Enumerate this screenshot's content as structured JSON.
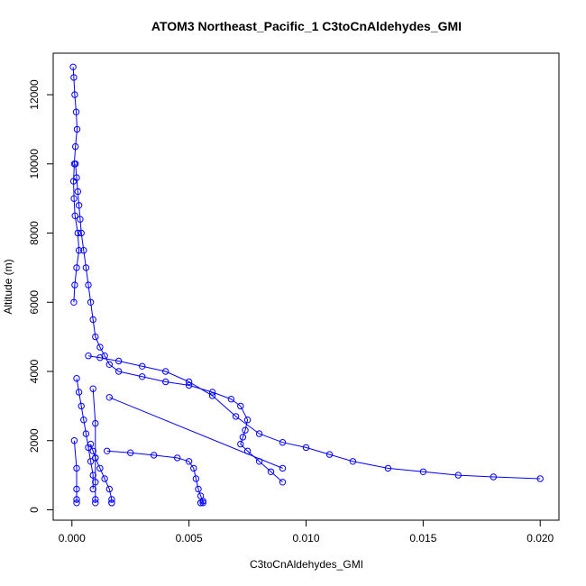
{
  "chart_data": {
    "type": "scatter",
    "title": "ATOM3 Northeast_Pacific_1 C3toCnAldehydes_GMI",
    "xlabel": "C3toCnAldehydes_GMI",
    "ylabel": "Altitude (m)",
    "xlim": [
      -0.0008,
      0.0208
    ],
    "ylim": [
      -300,
      13200
    ],
    "xticks": [
      0.0,
      0.005,
      0.01,
      0.015,
      0.02
    ],
    "xtick_labels": [
      "0.000",
      "0.005",
      "0.010",
      "0.015",
      "0.020"
    ],
    "yticks": [
      0,
      2000,
      4000,
      6000,
      8000,
      10000,
      12000
    ],
    "ytick_labels": [
      "0",
      "2000",
      "4000",
      "6000",
      "8000",
      "10000",
      "12000"
    ],
    "grid": false,
    "series_color": "#0000ff",
    "marker": "open-circle",
    "series": [
      {
        "x": [
          5e-05,
          8e-05,
          0.00012,
          0.00018,
          0.00022,
          0.00015,
          0.0001,
          7e-05,
          9e-05,
          0.00013,
          0.00025,
          0.0003,
          0.0002,
          0.00012,
          8e-05
        ],
        "y": [
          12800,
          12500,
          12000,
          11500,
          11000,
          10500,
          10000,
          9500,
          9000,
          8500,
          8000,
          7500,
          7000,
          6500,
          6000
        ]
      },
      {
        "x": [
          0.00015,
          0.0002,
          0.00025,
          0.0003,
          0.00035,
          0.0004,
          0.0005,
          0.0006,
          0.0007,
          0.0008,
          0.0009,
          0.001,
          0.0012,
          0.0014,
          0.0016,
          0.002,
          0.003,
          0.004,
          0.005,
          0.006,
          0.0068,
          0.0072,
          0.0075,
          0.0074,
          0.0073,
          0.0072,
          0.0075,
          0.008,
          0.0085,
          0.009
        ],
        "y": [
          10000,
          9600,
          9200,
          8800,
          8400,
          8000,
          7500,
          7000,
          6500,
          6000,
          5500,
          5000,
          4700,
          4450,
          4200,
          4000,
          3850,
          3700,
          3600,
          3400,
          3200,
          3000,
          2600,
          2300,
          2100,
          1900,
          1700,
          1400,
          1100,
          800
        ]
      },
      {
        "x": [
          0.0007,
          0.0012,
          0.002,
          0.003,
          0.004,
          0.005,
          0.006,
          0.007,
          0.008,
          0.009,
          0.01,
          0.011,
          0.012,
          0.0135,
          0.015,
          0.0165,
          0.018,
          0.02
        ],
        "y": [
          4450,
          4400,
          4300,
          4150,
          4000,
          3700,
          3300,
          2700,
          2200,
          1950,
          1800,
          1600,
          1400,
          1200,
          1100,
          1000,
          950,
          900
        ]
      },
      {
        "x": [
          0.0016,
          0.009
        ],
        "y": [
          3250,
          1200
        ]
      },
      {
        "x": [
          0.0015,
          0.0025,
          0.0035,
          0.0045,
          0.005,
          0.0052,
          0.0053,
          0.0054,
          0.0055,
          0.0056,
          0.0055,
          0.0055,
          0.0056
        ],
        "y": [
          1700,
          1650,
          1580,
          1500,
          1400,
          1200,
          900,
          600,
          400,
          250,
          200,
          200,
          200
        ]
      },
      {
        "x": [
          0.0008,
          0.0009,
          0.001,
          0.0012,
          0.0014,
          0.0016,
          0.0017,
          0.0017,
          0.0017
        ],
        "y": [
          1900,
          1700,
          1500,
          1200,
          900,
          600,
          300,
          200,
          200
        ]
      },
      {
        "x": [
          0.0009,
          0.001,
          0.001,
          0.001,
          0.001,
          0.001
        ],
        "y": [
          3500,
          2500,
          1500,
          800,
          300,
          200
        ]
      },
      {
        "x": [
          0.0002,
          0.0003,
          0.0004,
          0.0005,
          0.0006,
          0.0007,
          0.0008,
          0.0009,
          0.0009
        ],
        "y": [
          3800,
          3400,
          3000,
          2600,
          2200,
          1800,
          1400,
          1000,
          600
        ]
      },
      {
        "x": [
          0.0001,
          0.0002,
          0.0002,
          0.0002,
          0.0002
        ],
        "y": [
          2000,
          1200,
          600,
          300,
          200
        ]
      }
    ]
  }
}
